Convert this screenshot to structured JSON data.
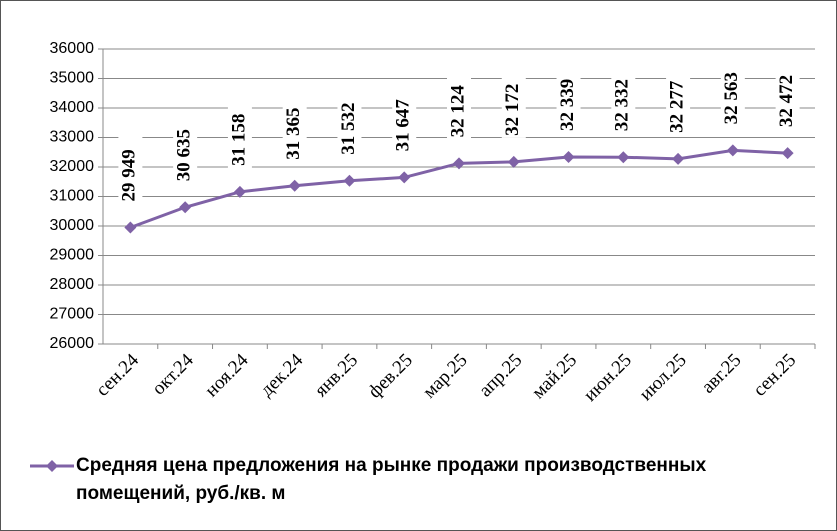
{
  "chart_data": {
    "type": "line",
    "categories": [
      "сен.24",
      "окт.24",
      "ноя.24",
      "дек.24",
      "янв.25",
      "фев.25",
      "мар.25",
      "апр.25",
      "май.25",
      "июн.25",
      "июл.25",
      "авг.25",
      "сен.25"
    ],
    "series": [
      {
        "name": "Средняя цена предложения на рынке продажи  производственных помещений,  руб./кв. м",
        "color": "#7f62a6",
        "values": [
          29949,
          30635,
          31158,
          31365,
          31532,
          31647,
          32124,
          32172,
          32339,
          32332,
          32277,
          32563,
          32472
        ],
        "value_labels": [
          "29 949",
          "30 635",
          "31 158",
          "31 365",
          "31 532",
          "31 647",
          "32 124",
          "32 172",
          "32 339",
          "32 332",
          "32 277",
          "32 563",
          "32 472"
        ]
      }
    ],
    "ylim": [
      26000,
      36000
    ],
    "yticks": [
      26000,
      27000,
      28000,
      29000,
      30000,
      31000,
      32000,
      33000,
      34000,
      35000,
      36000
    ],
    "grid": true,
    "legend": "bottom"
  }
}
